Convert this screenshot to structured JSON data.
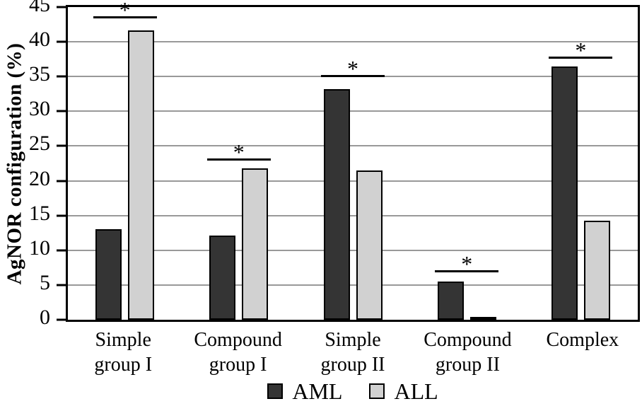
{
  "chart_data": {
    "type": "bar",
    "title": "",
    "ylabel": "AgNOR configuration (%)",
    "xlabel": "",
    "ylim": [
      0,
      45
    ],
    "ytick_step": 5,
    "yticks": [
      0,
      5,
      10,
      15,
      20,
      25,
      30,
      35,
      40,
      45
    ],
    "grid": "horizontal",
    "grid_color": "#999999",
    "axis_color": "#000000",
    "legend_position": "bottom-center",
    "categories": [
      "Simple group I",
      "Compound group I",
      "Simple group II",
      "Compound group II",
      "Complex"
    ],
    "series": [
      {
        "name": "AML",
        "color": "#343434",
        "values": [
          13.0,
          12.1,
          33.2,
          5.5,
          36.5
        ]
      },
      {
        "name": "ALL",
        "color": "#d1d1d1",
        "values": [
          41.6,
          21.8,
          21.5,
          0.4,
          14.3
        ]
      }
    ],
    "significance_markers": [
      {
        "category": "Simple group I",
        "symbol": "*",
        "line_y": 43.4
      },
      {
        "category": "Compound group I",
        "symbol": "*",
        "line_y": 22.9
      },
      {
        "category": "Simple group II",
        "symbol": "*",
        "line_y": 34.9
      },
      {
        "category": "Compound group II",
        "symbol": "*",
        "line_y": 6.8
      },
      {
        "category": "Complex",
        "symbol": "*",
        "line_y": 37.6
      }
    ]
  },
  "colors": {
    "background": "#ffffff",
    "bar_border": "#000000",
    "aml": "#343434",
    "all": "#d1d1d1",
    "grid": "#999999"
  }
}
